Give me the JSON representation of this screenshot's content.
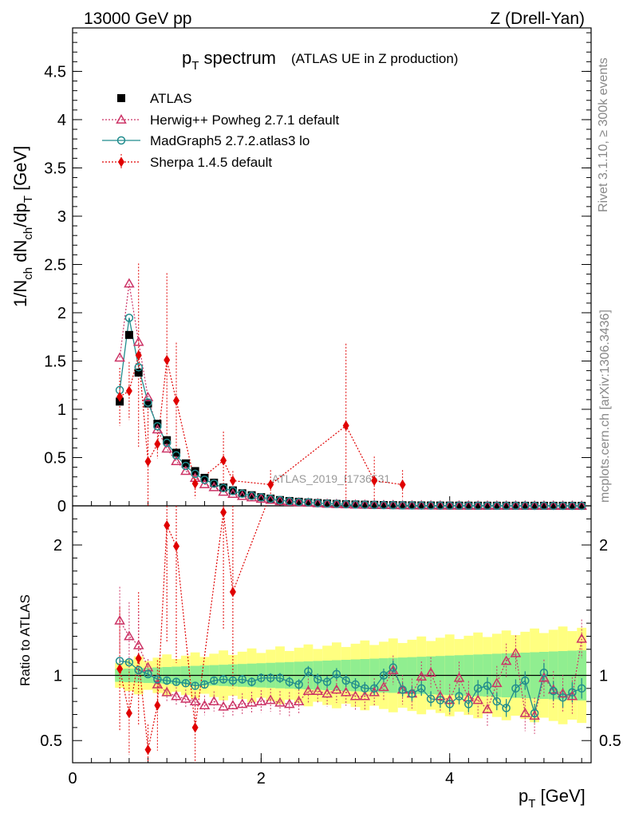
{
  "header": {
    "energy": "13000 GeV pp",
    "process": "Z (Drell-Yan)"
  },
  "title": {
    "main": "p",
    "main_sub": "T",
    "main_rest": " spectrum",
    "note": "(ATLAS UE in Z production)"
  },
  "side_labels": {
    "rivet": "Rivet 3.1.10, ≥ 300k events",
    "mcplots": "mcplots.cern.ch [arXiv:1306.3436]"
  },
  "watermark": "ATLAS_2019_I1736531",
  "axes": {
    "ylabel_top": "1/N_ch dN_ch/dp_T [GeV]",
    "ylabel_bottom": "Ratio to ATLAS",
    "xlabel": "p_T [GeV]"
  },
  "chart_data": {
    "type": "scatter",
    "xlim": [
      0,
      5.5
    ],
    "top": {
      "ylim": [
        0,
        4.95
      ],
      "yticks": [
        0,
        0.5,
        1,
        1.5,
        2,
        2.5,
        3,
        3.5,
        4,
        4.5
      ],
      "yticklabels": [
        "0",
        "0.5",
        "1",
        "1.5",
        "2",
        "2.5",
        "3",
        "3.5",
        "4",
        "4.5"
      ]
    },
    "bottom": {
      "ylim": [
        0.33,
        2.3
      ],
      "yticks": [
        0.5,
        1,
        2
      ],
      "yticklabels": [
        "0.5",
        "1",
        "2"
      ]
    },
    "xticks": [
      0,
      2,
      4
    ],
    "xticklabels": [
      "0",
      "2",
      "4"
    ],
    "x": [
      0.5,
      0.6,
      0.7,
      0.8,
      0.9,
      1.0,
      1.1,
      1.2,
      1.3,
      1.4,
      1.5,
      1.6,
      1.7,
      1.8,
      1.9,
      2.0,
      2.1,
      2.2,
      2.3,
      2.4,
      2.5,
      2.6,
      2.7,
      2.8,
      2.9,
      3.0,
      3.1,
      3.2,
      3.3,
      3.4,
      3.5,
      3.6,
      3.7,
      3.8,
      3.9,
      4.0,
      4.1,
      4.2,
      4.3,
      4.4,
      4.5,
      4.6,
      4.7,
      4.8,
      4.9,
      5.0,
      5.1,
      5.2,
      5.3,
      5.4
    ],
    "series": [
      {
        "name": "ATLAS",
        "color": "#000000",
        "marker": "square",
        "values": [
          1.08,
          1.77,
          1.38,
          1.06,
          0.85,
          0.68,
          0.55,
          0.44,
          0.36,
          0.29,
          0.24,
          0.19,
          0.16,
          0.13,
          0.11,
          0.09,
          0.075,
          0.06,
          0.05,
          0.042,
          0.035,
          0.029,
          0.024,
          0.02,
          0.017,
          0.014,
          0.012,
          0.01,
          0.008,
          0.007,
          0.006,
          0.005,
          0.004,
          0.0035,
          0.003,
          0.0026,
          0.0022,
          0.0019,
          0.0016,
          0.0014,
          0.0012,
          0.001,
          0.0009,
          0.0008,
          0.0007,
          0.0006,
          0.0005,
          0.0004,
          0.00035,
          0.0003
        ]
      },
      {
        "name": "Herwig++ Powheg 2.7.1 default",
        "color": "#cc3366",
        "marker": "triangle",
        "ratio": [
          1.42,
          1.3,
          1.23,
          1.06,
          0.93,
          0.87,
          0.84,
          0.82,
          0.8,
          0.77,
          0.8,
          0.76,
          0.77,
          0.78,
          0.79,
          0.8,
          0.81,
          0.79,
          0.78,
          0.8,
          0.88,
          0.88,
          0.86,
          0.89,
          0.87,
          0.84,
          0.84,
          0.87,
          0.91,
          1.04,
          0.89,
          0.86,
          0.99,
          1.02,
          0.84,
          0.81,
          0.98,
          0.83,
          0.81,
          0.74,
          0.94,
          1.11,
          1.17,
          0.71,
          0.69,
          0.98,
          0.89,
          0.86,
          0.84,
          1.28
        ]
      },
      {
        "name": "MadGraph5 2.7.2.atlas3 lo",
        "color": "#218c8d",
        "marker": "circle",
        "ratio": [
          1.11,
          1.1,
          1.04,
          1.01,
          0.97,
          0.96,
          0.95,
          0.94,
          0.92,
          0.93,
          0.96,
          0.97,
          0.96,
          0.97,
          0.95,
          0.98,
          0.98,
          0.98,
          0.95,
          0.93,
          1.03,
          0.97,
          0.95,
          1.01,
          0.96,
          0.93,
          0.9,
          0.9,
          1.0,
          1.06,
          0.89,
          0.86,
          0.9,
          0.82,
          0.81,
          0.78,
          0.84,
          0.78,
          0.9,
          0.92,
          0.8,
          0.75,
          0.9,
          0.96,
          0.71,
          1.02,
          0.88,
          0.83,
          0.87,
          0.9
        ]
      },
      {
        "name": "Sherpa 1.4.5 default",
        "color": "#e00000",
        "marker": "diamond",
        "points": [
          {
            "x": 0.5,
            "y": 1.13,
            "ratio": 1.05
          },
          {
            "x": 0.6,
            "y": 1.19,
            "ratio": 0.71
          },
          {
            "x": 0.7,
            "y": 1.56,
            "ratio": 1.13
          },
          {
            "x": 0.8,
            "y": 0.46,
            "ratio": 0.43
          },
          {
            "x": 0.9,
            "y": 0.64,
            "ratio": 0.77
          },
          {
            "x": 1.0,
            "y": 1.51,
            "ratio": 2.15
          },
          {
            "x": 1.1,
            "y": 1.09,
            "ratio": 1.99
          },
          {
            "x": 1.3,
            "y": 0.23,
            "ratio": 0.6
          },
          {
            "x": 1.6,
            "y": 0.47,
            "ratio": 2.25
          },
          {
            "x": 1.7,
            "y": 0.26,
            "ratio": 1.64
          },
          {
            "x": 2.1,
            "y": 0.22
          },
          {
            "x": 2.9,
            "y": 0.83
          },
          {
            "x": 3.2,
            "y": 0.26
          },
          {
            "x": 3.5,
            "y": 0.22
          }
        ]
      }
    ]
  }
}
